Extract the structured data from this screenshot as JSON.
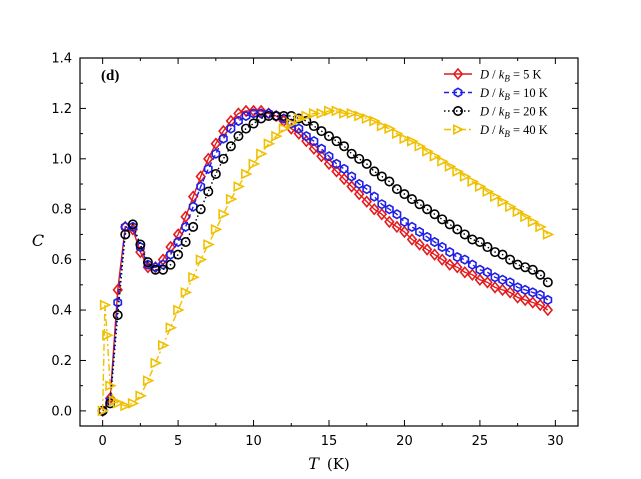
{
  "chart_data": {
    "type": "line",
    "panel_label": "(d)",
    "ylabel": "C",
    "xlabel": "T",
    "xlabel_unit": "(K)",
    "xlim": [
      -1.5,
      31.5
    ],
    "ylim": [
      -0.06,
      1.4
    ],
    "xticks": [
      0,
      5,
      10,
      15,
      20,
      25,
      30
    ],
    "xtick_labels": [
      "0",
      "5",
      "10",
      "15",
      "20",
      "25",
      "30"
    ],
    "yticks": [
      0.0,
      0.2,
      0.4,
      0.6,
      0.8,
      1.0,
      1.2,
      1.4
    ],
    "ytick_labels": [
      "0.0",
      "0.2",
      "0.4",
      "0.6",
      "0.8",
      "1.0",
      "1.2",
      "1.4"
    ],
    "legend_position": "top-right",
    "series": [
      {
        "name": "D / k_B = 5 K",
        "legend_label": {
          "d": "D",
          "slash": " / ",
          "k": "k",
          "sub": "B",
          "eq": " = 5 K"
        },
        "color": "#e41a1c",
        "marker": "diamond",
        "linestyle": "solid",
        "x": [
          0.0,
          0.5,
          1.0,
          1.5,
          2.0,
          2.5,
          3.0,
          3.5,
          4.0,
          4.5,
          5.0,
          5.5,
          6.0,
          6.5,
          7.0,
          7.5,
          8.0,
          8.5,
          9.0,
          9.5,
          10.0,
          10.5,
          11.0,
          11.5,
          12.0,
          12.5,
          13.0,
          13.5,
          14.0,
          14.5,
          15.0,
          15.5,
          16.0,
          16.5,
          17.0,
          17.5,
          18.0,
          18.5,
          19.0,
          19.5,
          20.0,
          20.5,
          21.0,
          21.5,
          22.0,
          22.5,
          23.0,
          23.5,
          24.0,
          24.5,
          25.0,
          25.5,
          26.0,
          26.5,
          27.0,
          27.5,
          28.0,
          28.5,
          29.0,
          29.5
        ],
        "y": [
          0.0,
          0.05,
          0.48,
          0.73,
          0.72,
          0.63,
          0.57,
          0.57,
          0.6,
          0.65,
          0.7,
          0.77,
          0.85,
          0.93,
          1.0,
          1.06,
          1.11,
          1.15,
          1.18,
          1.19,
          1.19,
          1.19,
          1.18,
          1.17,
          1.15,
          1.12,
          1.1,
          1.07,
          1.04,
          1.01,
          0.98,
          0.95,
          0.92,
          0.89,
          0.86,
          0.83,
          0.8,
          0.78,
          0.75,
          0.73,
          0.71,
          0.68,
          0.66,
          0.64,
          0.62,
          0.6,
          0.58,
          0.57,
          0.55,
          0.54,
          0.52,
          0.51,
          0.49,
          0.48,
          0.47,
          0.45,
          0.44,
          0.43,
          0.42,
          0.4
        ]
      },
      {
        "name": "D / k_B = 10 K",
        "legend_label": {
          "d": "D",
          "slash": " / ",
          "k": "k",
          "sub": "B",
          "eq": " = 10 K"
        },
        "color": "#1f1fe6",
        "marker": "hexagon",
        "linestyle": "dashed",
        "x": [
          0.0,
          0.5,
          1.0,
          1.5,
          2.0,
          2.5,
          3.0,
          3.5,
          4.0,
          4.5,
          5.0,
          5.5,
          6.0,
          6.5,
          7.0,
          7.5,
          8.0,
          8.5,
          9.0,
          9.5,
          10.0,
          10.5,
          11.0,
          11.5,
          12.0,
          12.5,
          13.0,
          13.5,
          14.0,
          14.5,
          15.0,
          15.5,
          16.0,
          16.5,
          17.0,
          17.5,
          18.0,
          18.5,
          19.0,
          19.5,
          20.0,
          20.5,
          21.0,
          21.5,
          22.0,
          22.5,
          23.0,
          23.5,
          24.0,
          24.5,
          25.0,
          25.5,
          26.0,
          26.5,
          27.0,
          27.5,
          28.0,
          28.5,
          29.0,
          29.5
        ],
        "y": [
          0.0,
          0.04,
          0.43,
          0.73,
          0.73,
          0.65,
          0.58,
          0.57,
          0.58,
          0.62,
          0.67,
          0.73,
          0.81,
          0.89,
          0.96,
          1.02,
          1.08,
          1.12,
          1.15,
          1.17,
          1.18,
          1.18,
          1.18,
          1.17,
          1.16,
          1.14,
          1.12,
          1.09,
          1.07,
          1.04,
          1.01,
          0.98,
          0.96,
          0.93,
          0.9,
          0.88,
          0.85,
          0.82,
          0.8,
          0.78,
          0.75,
          0.73,
          0.71,
          0.69,
          0.67,
          0.65,
          0.63,
          0.61,
          0.6,
          0.58,
          0.56,
          0.55,
          0.53,
          0.52,
          0.51,
          0.49,
          0.48,
          0.47,
          0.46,
          0.44
        ]
      },
      {
        "name": "D / k_B = 20 K",
        "legend_label": {
          "d": "D",
          "slash": " / ",
          "k": "k",
          "sub": "B",
          "eq": " = 20 K"
        },
        "color": "#000000",
        "marker": "circle",
        "linestyle": "dotted",
        "x": [
          0.0,
          0.5,
          1.0,
          1.5,
          2.0,
          2.5,
          3.0,
          3.5,
          4.0,
          4.5,
          5.0,
          5.5,
          6.0,
          6.5,
          7.0,
          7.5,
          8.0,
          8.5,
          9.0,
          9.5,
          10.0,
          10.5,
          11.0,
          11.5,
          12.0,
          12.5,
          13.0,
          13.5,
          14.0,
          14.5,
          15.0,
          15.5,
          16.0,
          16.5,
          17.0,
          17.5,
          18.0,
          18.5,
          19.0,
          19.5,
          20.0,
          20.5,
          21.0,
          21.5,
          22.0,
          22.5,
          23.0,
          23.5,
          24.0,
          24.5,
          25.0,
          25.5,
          26.0,
          26.5,
          27.0,
          27.5,
          28.0,
          28.5,
          29.0,
          29.5
        ],
        "y": [
          0.0,
          0.03,
          0.38,
          0.7,
          0.74,
          0.66,
          0.59,
          0.56,
          0.56,
          0.58,
          0.62,
          0.67,
          0.73,
          0.8,
          0.87,
          0.94,
          1.0,
          1.05,
          1.09,
          1.12,
          1.14,
          1.16,
          1.17,
          1.17,
          1.17,
          1.17,
          1.16,
          1.15,
          1.13,
          1.11,
          1.09,
          1.07,
          1.05,
          1.02,
          1.0,
          0.98,
          0.95,
          0.93,
          0.91,
          0.88,
          0.86,
          0.84,
          0.82,
          0.8,
          0.78,
          0.76,
          0.74,
          0.72,
          0.7,
          0.68,
          0.67,
          0.65,
          0.63,
          0.62,
          0.6,
          0.58,
          0.57,
          0.56,
          0.54,
          0.51
        ]
      },
      {
        "name": "D / k_B = 40 K",
        "legend_label": {
          "d": "D",
          "slash": " / ",
          "k": "k",
          "sub": "B",
          "eq": " = 40 K"
        },
        "color": "#f0c000",
        "marker": "triangle-right",
        "linestyle": "dashdot",
        "x": [
          0.0,
          0.15,
          0.3,
          0.5,
          0.75,
          1.0,
          1.5,
          2.0,
          2.5,
          3.0,
          3.5,
          4.0,
          4.5,
          5.0,
          5.5,
          6.0,
          6.5,
          7.0,
          7.5,
          8.0,
          8.5,
          9.0,
          9.5,
          10.0,
          10.5,
          11.0,
          11.5,
          12.0,
          12.5,
          13.0,
          13.5,
          14.0,
          14.5,
          15.0,
          15.5,
          16.0,
          16.5,
          17.0,
          17.5,
          18.0,
          18.5,
          19.0,
          19.5,
          20.0,
          20.5,
          21.0,
          21.5,
          22.0,
          22.5,
          23.0,
          23.5,
          24.0,
          24.5,
          25.0,
          25.5,
          26.0,
          26.5,
          27.0,
          27.5,
          28.0,
          28.5,
          29.0,
          29.5
        ],
        "y": [
          0.0,
          0.42,
          0.3,
          0.1,
          0.04,
          0.03,
          0.02,
          0.03,
          0.06,
          0.12,
          0.19,
          0.26,
          0.33,
          0.4,
          0.47,
          0.53,
          0.6,
          0.66,
          0.72,
          0.78,
          0.84,
          0.89,
          0.94,
          0.98,
          1.02,
          1.06,
          1.09,
          1.12,
          1.14,
          1.16,
          1.17,
          1.18,
          1.18,
          1.19,
          1.19,
          1.18,
          1.18,
          1.17,
          1.16,
          1.15,
          1.13,
          1.12,
          1.1,
          1.08,
          1.07,
          1.05,
          1.03,
          1.01,
          0.99,
          0.97,
          0.95,
          0.93,
          0.91,
          0.89,
          0.87,
          0.85,
          0.83,
          0.81,
          0.79,
          0.77,
          0.75,
          0.73,
          0.7
        ]
      }
    ]
  }
}
